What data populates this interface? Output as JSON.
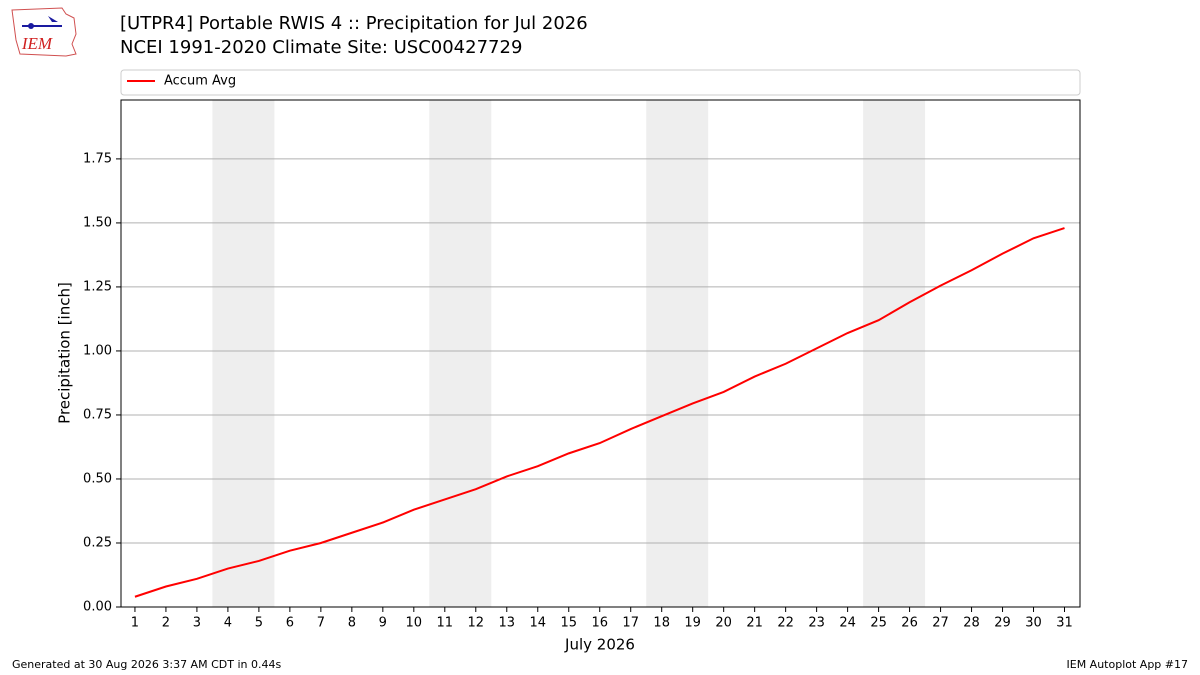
{
  "chart_data": {
    "type": "line",
    "logo_text": "IEM",
    "title": "[UTPR4] Portable RWIS 4 :: Precipitation for Jul 2026",
    "subtitle": "NCEI 1991-2020 Climate Site: USC00427729",
    "xlabel": "July 2026",
    "ylabel": "Precipitation [inch]",
    "footer_left": "Generated at 30 Aug 2026 3:37 AM CDT in 0.44s",
    "footer_right": "IEM Autoplot App #17",
    "x": [
      1,
      2,
      3,
      4,
      5,
      6,
      7,
      8,
      9,
      10,
      11,
      12,
      13,
      14,
      15,
      16,
      17,
      18,
      19,
      20,
      21,
      22,
      23,
      24,
      25,
      26,
      27,
      28,
      29,
      30,
      31
    ],
    "series": [
      {
        "name": "Accum Avg",
        "color": "#ff0000",
        "values": [
          0.04,
          0.08,
          0.11,
          0.15,
          0.18,
          0.22,
          0.25,
          0.29,
          0.33,
          0.38,
          0.42,
          0.46,
          0.51,
          0.55,
          0.6,
          0.64,
          0.695,
          0.745,
          0.795,
          0.84,
          0.9,
          0.95,
          1.01,
          1.07,
          1.12,
          1.19,
          1.255,
          1.315,
          1.38,
          1.44,
          1.48
        ]
      }
    ],
    "xlim": [
      0.55,
      31.5
    ],
    "xticks": [
      1,
      2,
      3,
      4,
      5,
      6,
      7,
      8,
      9,
      10,
      11,
      12,
      13,
      14,
      15,
      16,
      17,
      18,
      19,
      20,
      21,
      22,
      23,
      24,
      25,
      26,
      27,
      28,
      29,
      30,
      31
    ],
    "ylim": [
      0,
      1.98
    ],
    "yticks": [
      {
        "value": 0,
        "label": "0.00"
      },
      0.25,
      {
        "value": 0.5,
        "label": "0.50"
      },
      0.75,
      {
        "value": 1,
        "label": "1.00"
      },
      1.25,
      {
        "value": 1.5,
        "label": "1.50"
      },
      1.75
    ],
    "grid": "y",
    "weekend_spans": [
      [
        3.5,
        5.5
      ],
      [
        10.5,
        12.5
      ],
      [
        17.5,
        19.5
      ],
      [
        24.5,
        26.5
      ]
    ],
    "span_color": "#eeeeee",
    "legend": "top"
  }
}
